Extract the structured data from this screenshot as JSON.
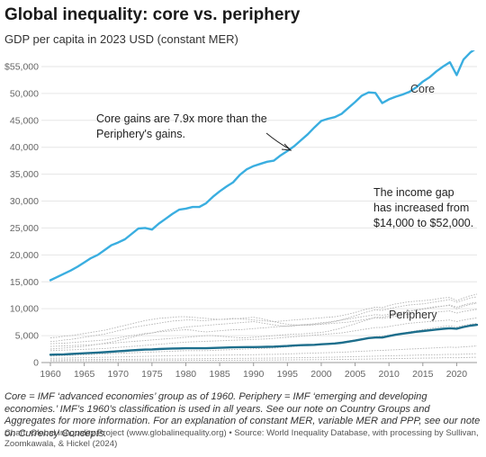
{
  "header": {
    "title": "Global inequality: core vs. periphery",
    "subtitle": "GDP per capita in 2023 USD (constant MER)"
  },
  "footer": {
    "note": "Core = IMF ‘advanced economies’ group as of 1960. Periphery = IMF ‘emerging and developing economies.’ IMF’s 1960’s classification is used in all years. See our note on Country Groups and Aggregates for more information. For an explanation of constant MER, variable MER and PPP, see our note on Currency Concepts.",
    "credit": "Chart: Global Inequality Project (www.globalinequality.org) • Source: World Inequality Database, with processing by Sullivan, Zoomkawala, & Hickel (2024)"
  },
  "chart_data": {
    "type": "line",
    "xlim": [
      1960,
      2023
    ],
    "ylim": [
      0,
      58000
    ],
    "x_ticks": [
      1960,
      1965,
      1970,
      1975,
      1980,
      1985,
      1990,
      1995,
      2000,
      2005,
      2010,
      2015,
      2020
    ],
    "y_ticks": [
      {
        "value": 0,
        "label": "0"
      },
      {
        "value": 5000,
        "label": "5,000"
      },
      {
        "value": 10000,
        "label": "10,000"
      },
      {
        "value": 15000,
        "label": "15,000"
      },
      {
        "value": 20000,
        "label": "20,000"
      },
      {
        "value": 25000,
        "label": "25,000"
      },
      {
        "value": 30000,
        "label": "30,000"
      },
      {
        "value": 35000,
        "label": "35,000"
      },
      {
        "value": 40000,
        "label": "40,000"
      },
      {
        "value": 45000,
        "label": "45,000"
      },
      {
        "value": 50000,
        "label": "50,000"
      },
      {
        "value": 55000,
        "label": "$55,000"
      }
    ],
    "grid": true,
    "x": [
      1960,
      1961,
      1962,
      1963,
      1964,
      1965,
      1966,
      1967,
      1968,
      1969,
      1970,
      1971,
      1972,
      1973,
      1974,
      1975,
      1976,
      1977,
      1978,
      1979,
      1980,
      1981,
      1982,
      1983,
      1984,
      1985,
      1986,
      1987,
      1988,
      1989,
      1990,
      1991,
      1992,
      1993,
      1994,
      1995,
      1996,
      1997,
      1998,
      1999,
      2000,
      2001,
      2002,
      2003,
      2004,
      2005,
      2006,
      2007,
      2008,
      2009,
      2010,
      2011,
      2012,
      2013,
      2014,
      2015,
      2016,
      2017,
      2018,
      2019,
      2020,
      2021,
      2022,
      2023
    ],
    "series": [
      {
        "name": "Core",
        "color": "#3aaee0",
        "width": 2.4,
        "values": [
          15300,
          15900,
          16500,
          17100,
          17800,
          18600,
          19400,
          20000,
          20900,
          21800,
          22300,
          22900,
          23900,
          24900,
          25000,
          24700,
          25800,
          26700,
          27600,
          28400,
          28600,
          28900,
          28900,
          29600,
          30800,
          31800,
          32700,
          33500,
          34900,
          35900,
          36500,
          36900,
          37300,
          37500,
          38500,
          39300,
          40200,
          41300,
          42400,
          43700,
          44900,
          45300,
          45600,
          46200,
          47300,
          48400,
          49600,
          50200,
          50100,
          48200,
          48900,
          49400,
          49800,
          50300,
          51100,
          52200,
          53000,
          54100,
          55000,
          55800,
          53400,
          56300,
          57600,
          58500
        ]
      },
      {
        "name": "Periphery",
        "color": "#1d6e8c",
        "width": 2.4,
        "values": [
          1450,
          1480,
          1520,
          1580,
          1650,
          1720,
          1790,
          1860,
          1930,
          2010,
          2100,
          2180,
          2270,
          2340,
          2400,
          2440,
          2500,
          2560,
          2600,
          2630,
          2650,
          2660,
          2650,
          2660,
          2700,
          2740,
          2790,
          2830,
          2860,
          2880,
          2880,
          2890,
          2920,
          2960,
          3020,
          3080,
          3160,
          3230,
          3260,
          3300,
          3400,
          3460,
          3540,
          3670,
          3870,
          4080,
          4320,
          4540,
          4650,
          4650,
          4920,
          5160,
          5360,
          5540,
          5720,
          5850,
          5980,
          6140,
          6270,
          6370,
          6290,
          6600,
          6860,
          7000
        ]
      }
    ],
    "background_series_note": "individual country/region lines shown faintly behind",
    "background_series": [
      {
        "values": [
          3900,
          4000,
          4200,
          4300,
          4500,
          4700,
          4900,
          5100,
          5300,
          5600,
          5900,
          6200,
          6500,
          6700,
          6900,
          7100,
          7300,
          7500,
          7700,
          7800,
          7900,
          7900,
          7800,
          7800,
          7900,
          8000,
          8100,
          8200,
          8100,
          8000,
          7900,
          7800,
          7700,
          7600,
          7700,
          7800,
          7900,
          8000,
          8100,
          8200,
          8300,
          8400,
          8500,
          8700,
          9000,
          9300,
          9700,
          10000,
          10300,
          10200,
          10600,
          10900,
          11100,
          11300,
          11400,
          11500,
          11600,
          11800,
          12000,
          12100,
          11500,
          12000,
          12400,
          12700
        ]
      },
      {
        "values": [
          3500,
          3550,
          3600,
          3700,
          3800,
          3900,
          4000,
          4100,
          4200,
          4400,
          4600,
          4800,
          5000,
          5200,
          5400,
          5500,
          5700,
          5800,
          5900,
          6000,
          6100,
          6000,
          5800,
          5700,
          5800,
          5900,
          6000,
          6100,
          6100,
          6200,
          6300,
          6400,
          6500,
          6600,
          6700,
          6800,
          6900,
          7000,
          7000,
          7100,
          7200,
          7400,
          7600,
          7900,
          8300,
          8700,
          9100,
          9500,
          9800,
          9700,
          10000,
          10300,
          10500,
          10700,
          10800,
          10900,
          11100,
          11300,
          11500,
          11700,
          11200,
          11600,
          12000,
          12200
        ]
      },
      {
        "values": [
          2500,
          2600,
          2700,
          2800,
          2900,
          3000,
          3200,
          3400,
          3600,
          3800,
          4100,
          4400,
          4700,
          5000,
          5300,
          5500,
          5800,
          6000,
          6200,
          6400,
          6600,
          6700,
          6800,
          6900,
          7000,
          7100,
          7200,
          7300,
          7400,
          7500,
          7600,
          7400,
          7200,
          7000,
          6800,
          6700,
          6800,
          7000,
          7100,
          7200,
          7400,
          7500,
          7700,
          7900,
          8100,
          8300,
          8500,
          8700,
          8900,
          8800,
          9000,
          9200,
          9400,
          9600,
          9800,
          10000,
          10200,
          10400,
          10500,
          10600,
          10000,
          10500,
          10800,
          11000
        ]
      },
      {
        "values": [
          3000,
          3050,
          3100,
          3150,
          3200,
          3250,
          3300,
          3400,
          3500,
          3600,
          3700,
          3800,
          3900,
          4000,
          4100,
          4200,
          4300,
          4400,
          4500,
          4600,
          4700,
          4800,
          4900,
          5000,
          5000,
          4900,
          4800,
          4700,
          4600,
          4600,
          4700,
          4800,
          4900,
          5000,
          5100,
          5200,
          5300,
          5300,
          5400,
          5500,
          5600,
          5800,
          6100,
          6400,
          6800,
          7200,
          7600,
          8000,
          8400,
          8400,
          8700,
          9000,
          9300,
          9500,
          9700,
          9900,
          10100,
          10300,
          10500,
          10700,
          10300,
          10700,
          11000,
          11200
        ]
      },
      {
        "values": [
          4600,
          4700,
          4900,
          5000,
          5200,
          5400,
          5600,
          5800,
          6000,
          6300,
          6600,
          6900,
          7200,
          7500,
          7800,
          8000,
          8200,
          8300,
          8400,
          8500,
          8500,
          8400,
          8300,
          8200,
          8100,
          8000,
          8000,
          8100,
          8200,
          8300,
          8400,
          8200,
          7900,
          7600,
          7300,
          7100,
          7000,
          6900,
          6900,
          7000,
          7100,
          7200,
          7300,
          7400,
          7500,
          7700,
          7900,
          8100,
          8300,
          8200,
          8400,
          8600,
          8800,
          9000,
          9100,
          9200,
          9300,
          9400,
          9500,
          9600,
          9200,
          9500,
          9700,
          9900
        ]
      },
      {
        "values": [
          2200,
          2250,
          2300,
          2350,
          2400,
          2450,
          2500,
          2550,
          2600,
          2700,
          2800,
          2900,
          3000,
          3100,
          3200,
          3300,
          3400,
          3500,
          3600,
          3700,
          3800,
          3850,
          3900,
          3950,
          4000,
          4050,
          4100,
          4150,
          4200,
          4250,
          4300,
          4350,
          4400,
          4500,
          4600,
          4700,
          4800,
          4900,
          5000,
          5100,
          5200,
          5300,
          5400,
          5500,
          5700,
          5900,
          6100,
          6300,
          6500,
          6500,
          6700,
          6900,
          7100,
          7300,
          7400,
          7500,
          7600,
          7700,
          7800,
          7900,
          7600,
          7900,
          8100,
          8300
        ]
      },
      {
        "values": [
          1200,
          1250,
          1300,
          1350,
          1400,
          1450,
          1500,
          1550,
          1600,
          1650,
          1700,
          1750,
          1800,
          1850,
          1900,
          1950,
          2000,
          2050,
          2100,
          2150,
          2200,
          2200,
          2200,
          2200,
          2250,
          2300,
          2350,
          2400,
          2450,
          2500,
          2550,
          2600,
          2650,
          2700,
          2800,
          2900,
          3000,
          3100,
          3200,
          3300,
          3400,
          3500,
          3600,
          3800,
          4000,
          4200,
          4400,
          4600,
          4800,
          4900,
          5100,
          5300,
          5500,
          5700,
          5900,
          6100,
          6300,
          6500,
          6700,
          6800,
          6600,
          6900,
          7100,
          7300
        ]
      },
      {
        "values": [
          800,
          820,
          840,
          860,
          880,
          900,
          920,
          950,
          980,
          1010,
          1040,
          1070,
          1100,
          1130,
          1160,
          1190,
          1220,
          1250,
          1280,
          1300,
          1320,
          1330,
          1340,
          1350,
          1360,
          1370,
          1380,
          1400,
          1420,
          1440,
          1460,
          1480,
          1500,
          1520,
          1560,
          1600,
          1640,
          1680,
          1720,
          1760,
          1800,
          1840,
          1880,
          1920,
          1980,
          2040,
          2100,
          2160,
          2220,
          2260,
          2320,
          2380,
          2440,
          2500,
          2560,
          2620,
          2680,
          2740,
          2800,
          2860,
          2800,
          2900,
          3000,
          3100
        ]
      },
      {
        "values": [
          500,
          510,
          520,
          530,
          540,
          550,
          560,
          570,
          580,
          590,
          600,
          610,
          620,
          630,
          640,
          650,
          660,
          670,
          680,
          690,
          700,
          710,
          720,
          730,
          740,
          750,
          760,
          770,
          780,
          790,
          800,
          810,
          820,
          830,
          850,
          870,
          890,
          910,
          930,
          950,
          970,
          990,
          1010,
          1040,
          1070,
          1100,
          1130,
          1160,
          1190,
          1220,
          1250,
          1280,
          1310,
          1340,
          1370,
          1400,
          1430,
          1460,
          1490,
          1520,
          1500,
          1550,
          1600,
          1650
        ]
      },
      {
        "values": [
          300,
          305,
          310,
          315,
          320,
          325,
          330,
          335,
          340,
          345,
          350,
          355,
          360,
          365,
          370,
          375,
          380,
          385,
          390,
          395,
          400,
          405,
          410,
          415,
          420,
          425,
          430,
          435,
          440,
          445,
          450,
          455,
          460,
          470,
          480,
          490,
          500,
          510,
          520,
          530,
          540,
          550,
          560,
          580,
          600,
          620,
          640,
          660,
          680,
          700,
          720,
          740,
          760,
          780,
          800,
          820,
          840,
          860,
          880,
          900,
          880,
          920,
          950,
          980
        ]
      }
    ],
    "annotations": [
      {
        "lines": [
          "Core gains are 7.9x more than the",
          "Periphery's gains."
        ]
      },
      {
        "lines": [
          "The income gap",
          "has increased from",
          "$14,000 to $52,000."
        ]
      }
    ],
    "series_labels": [
      "Core",
      "Periphery"
    ]
  }
}
